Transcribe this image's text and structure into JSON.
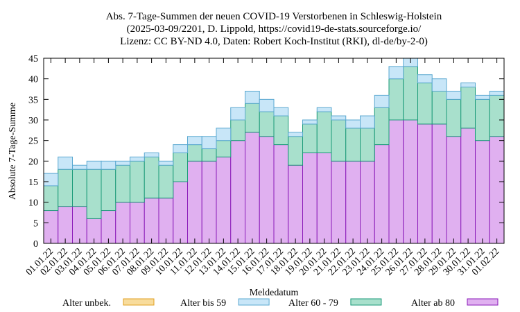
{
  "chart_data": {
    "type": "bar",
    "stacked": true,
    "title": [
      "Abs. 7-Tage-Summen der neuen COVID-19 Verstorbenen in Schleswig-Holstein",
      "(2025-03-09/2201, D. Lippold, https://covid19-de-stats.sourceforge.io/",
      "Lizenz: CC BY-ND 4.0, Daten: Robert Koch-Institut (RKI), dl-de/by-2-0)"
    ],
    "xlabel": "Meldedatum",
    "ylabel": "Absolute 7-Tage-Summe",
    "ylim": [
      0,
      45
    ],
    "yticks": [
      0,
      5,
      10,
      15,
      20,
      25,
      30,
      35,
      40,
      45
    ],
    "grid": false,
    "legend_position": "bottom",
    "categories": [
      "01.01.22",
      "02.01.22",
      "03.01.22",
      "04.01.22",
      "05.01.22",
      "06.01.22",
      "07.01.22",
      "08.01.22",
      "09.01.22",
      "10.01.22",
      "11.01.22",
      "12.01.22",
      "13.01.22",
      "14.01.22",
      "15.01.22",
      "16.01.22",
      "17.01.22",
      "18.01.22",
      "19.01.22",
      "20.01.22",
      "21.01.22",
      "22.01.22",
      "23.01.22",
      "24.01.22",
      "25.01.22",
      "26.01.22",
      "27.01.22",
      "28.01.22",
      "29.01.22",
      "30.01.22",
      "31.01.22",
      "01.02.22"
    ],
    "series": [
      {
        "name": "Alter ab 80",
        "fill": "#e0b0f0",
        "stroke": "#8a1ab8",
        "values": [
          8,
          9,
          9,
          6,
          8,
          10,
          10,
          11,
          11,
          15,
          20,
          20,
          21,
          25,
          27,
          26,
          24,
          19,
          22,
          22,
          20,
          20,
          20,
          24,
          30,
          30,
          29,
          29,
          26,
          28,
          25,
          26
        ]
      },
      {
        "name": "Alter 60 - 79",
        "fill": "#a8e0cc",
        "stroke": "#1a9a78",
        "values": [
          6,
          9,
          9,
          12,
          10,
          9,
          10,
          10,
          8,
          7,
          4,
          3,
          4,
          5,
          7,
          6,
          7,
          7,
          7,
          10,
          10,
          8,
          8,
          9,
          10,
          13,
          10,
          8,
          9,
          10,
          10,
          10
        ]
      },
      {
        "name": "Alter bis 59",
        "fill": "#c8e6f8",
        "stroke": "#5aa8d0",
        "values": [
          3,
          3,
          1,
          2,
          2,
          1,
          1,
          1,
          1,
          2,
          2,
          3,
          3,
          3,
          3,
          3,
          2,
          1,
          1,
          1,
          1,
          2,
          3,
          3,
          3,
          2,
          2,
          3,
          2,
          1,
          1,
          1
        ]
      },
      {
        "name": "Alter unbek.",
        "fill": "#f8dc9c",
        "stroke": "#e0a020",
        "values": [
          0,
          0,
          0,
          0,
          0,
          0,
          0,
          0,
          0,
          0,
          0,
          0,
          0,
          0,
          0,
          0,
          0,
          0,
          0,
          0,
          0,
          0,
          0,
          0,
          0,
          0,
          0,
          0,
          0,
          0,
          0,
          0
        ]
      }
    ],
    "legend_order": [
      "Alter unbek.",
      "Alter bis 59",
      "Alter 60 - 79",
      "Alter ab 80"
    ]
  }
}
